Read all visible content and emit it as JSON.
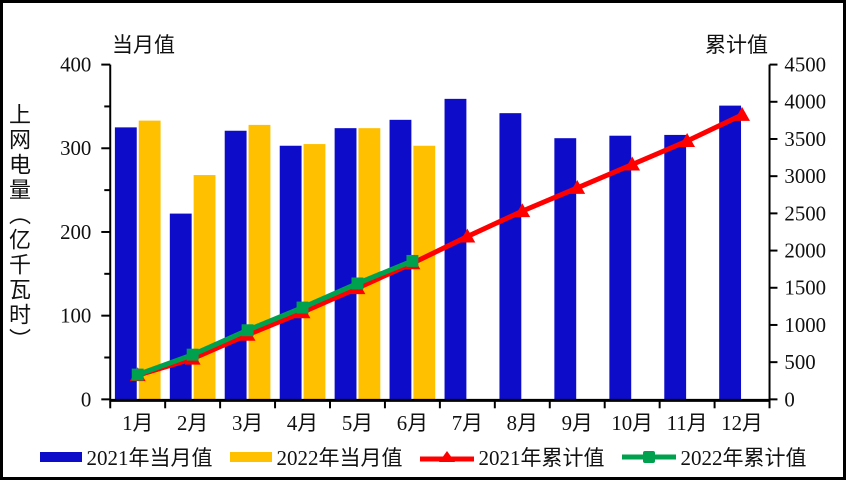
{
  "chart": {
    "y_axis_title": "上网电量（亿千瓦时）",
    "left_axis_caption": "当月值",
    "right_axis_caption": "累计值"
  },
  "legend": {
    "items": [
      {
        "label": "2021年当月值",
        "type": "bar",
        "color": "#0d0dc9"
      },
      {
        "label": "2022年当月值",
        "type": "bar",
        "color": "#ffc000"
      },
      {
        "label": "2021年累计值",
        "type": "line-triangle",
        "color": "#ff0000"
      },
      {
        "label": "2022年累计值",
        "type": "line-square",
        "color": "#00a14e"
      }
    ]
  },
  "chart_data": {
    "type": "bar",
    "subtype": "combo-bar-line",
    "title": "",
    "categories": [
      "1月",
      "2月",
      "3月",
      "4月",
      "5月",
      "6月",
      "7月",
      "8月",
      "9月",
      "10月",
      "11月",
      "12月"
    ],
    "bar_series": [
      {
        "name": "2021年当月值",
        "color": "#0d0dc9",
        "axis": "left",
        "values": [
          325,
          222,
          321,
          303,
          324,
          334,
          359,
          342,
          312,
          315,
          316,
          351
        ]
      },
      {
        "name": "2022年当月值",
        "color": "#ffc000",
        "axis": "left",
        "values": [
          333,
          268,
          328,
          305,
          324,
          303,
          null,
          null,
          null,
          null,
          null,
          null
        ]
      }
    ],
    "line_series": [
      {
        "name": "2021年累计值",
        "color": "#ff0000",
        "marker": "triangle",
        "axis": "right",
        "values": [
          325,
          547,
          868,
          1171,
          1495,
          1829,
          2188,
          2530,
          2842,
          3157,
          3473,
          3824
        ]
      },
      {
        "name": "2022年累计值",
        "color": "#00a14e",
        "marker": "square",
        "axis": "right",
        "values": [
          333,
          601,
          929,
          1234,
          1558,
          1861,
          null,
          null,
          null,
          null,
          null,
          null
        ]
      }
    ],
    "left_axis": {
      "caption": "当月值",
      "label": "上网电量（亿千瓦时）",
      "min": 0,
      "max": 400,
      "ticks": [
        400,
        300,
        200,
        100,
        0
      ],
      "minor_tick_step": 50
    },
    "right_axis": {
      "caption": "累计值",
      "min": 0,
      "max": 4500,
      "ticks": [
        4500,
        4000,
        3500,
        3000,
        2500,
        2000,
        1500,
        1000,
        500,
        0
      ]
    },
    "grid": false,
    "legend_position": "bottom"
  }
}
